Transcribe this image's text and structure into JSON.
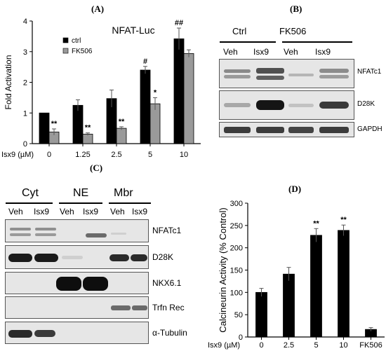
{
  "panels": {
    "A": "(A)",
    "B": "(B)",
    "C": "(C)",
    "D": "(D)"
  },
  "chart_data": [
    {
      "type": "bar",
      "title": "NFAT-Luc",
      "ylabel": "Fold Activation",
      "xlabel": "Isx9 (µM)",
      "categories": [
        "0",
        "1.25",
        "2.5",
        "5",
        "10"
      ],
      "yticks": [
        "0",
        "1",
        "2",
        "3",
        "4"
      ],
      "ylim": [
        0,
        4
      ],
      "legend": "top-left",
      "series": [
        {
          "name": "ctrl",
          "color": "#000000",
          "values": [
            1.0,
            1.25,
            1.47,
            2.4,
            3.42
          ],
          "errors": [
            0.0,
            0.18,
            0.28,
            0.12,
            0.35
          ]
        },
        {
          "name": "FK506",
          "color": "#9a9a9a",
          "values": [
            0.38,
            0.31,
            0.5,
            1.3,
            2.94
          ],
          "errors": [
            0.1,
            0.04,
            0.05,
            0.2,
            0.12
          ]
        }
      ],
      "annotations": [
        {
          "series": 1,
          "index": 0,
          "text": "**"
        },
        {
          "series": 1,
          "index": 1,
          "text": "**"
        },
        {
          "series": 1,
          "index": 2,
          "text": "**"
        },
        {
          "series": 1,
          "index": 3,
          "text": "*"
        },
        {
          "series": 0,
          "index": 3,
          "text": "#"
        },
        {
          "series": 0,
          "index": 4,
          "text": "##"
        }
      ]
    },
    {
      "type": "bar",
      "ylabel": "Calcineurin Activity  (% Control)",
      "xlabel": "Isx9 (µM)",
      "categories": [
        "0",
        "2.5",
        "5",
        "10",
        "FK506"
      ],
      "yticks": [
        "0",
        "50",
        "100",
        "150",
        "200",
        "250",
        "300"
      ],
      "ylim": [
        0,
        300
      ],
      "series": [
        {
          "color": "#000000",
          "values": [
            100,
            141,
            228,
            239,
            17
          ],
          "errors": [
            9,
            15,
            15,
            12,
            4
          ]
        }
      ],
      "annotations": [
        {
          "series": 0,
          "index": 2,
          "text": "**"
        },
        {
          "series": 0,
          "index": 3,
          "text": "**"
        }
      ]
    }
  ],
  "blotB": {
    "groups": [
      "Ctrl",
      "FK506"
    ],
    "lanes": [
      "Veh",
      "Isx9",
      "Veh",
      "Isx9"
    ],
    "rows": [
      "NFATc1",
      "D28K",
      "GAPDH"
    ]
  },
  "blotC": {
    "groups": [
      "Cyt",
      "NE",
      "Mbr"
    ],
    "lanes": [
      "Veh",
      "Isx9",
      "Veh",
      "Isx9",
      "Veh",
      "Isx9"
    ],
    "rows": [
      "NFATc1",
      "D28K",
      "NKX6.1",
      "Trfn Rec",
      "α-Tubulin"
    ]
  }
}
